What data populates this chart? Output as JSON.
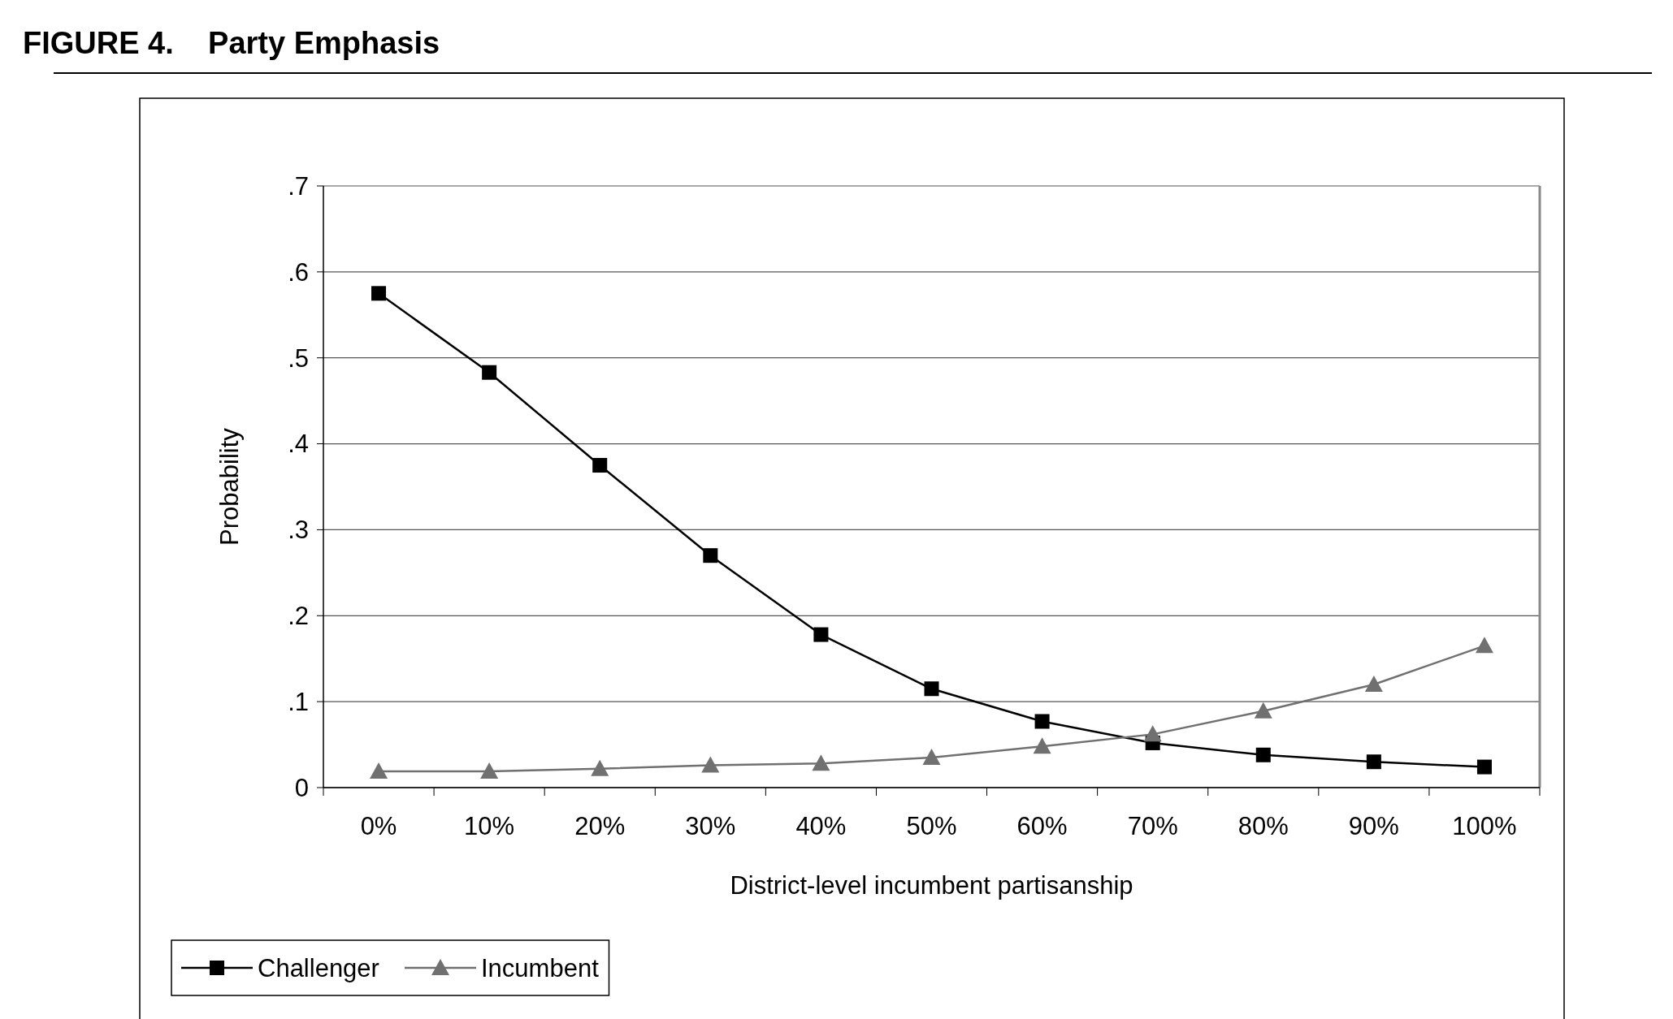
{
  "chart_data": {
    "type": "line",
    "title": "FIGURE 4.    Party Emphasis",
    "xlabel": "District-level incumbent partisanship",
    "ylabel": "Probability",
    "categories": [
      "0%",
      "10%",
      "20%",
      "30%",
      "40%",
      "50%",
      "60%",
      "70%",
      "80%",
      "90%",
      "100%"
    ],
    "ylim": [
      0,
      0.7
    ],
    "yticks": [
      0,
      {
        "value": 0.1,
        "label": ".1"
      },
      {
        "value": 0.2,
        "label": ".2"
      },
      {
        "value": 0.3,
        "label": ".3"
      },
      {
        "value": 0.4,
        "label": ".4"
      },
      {
        "value": 0.5,
        "label": ".5"
      },
      {
        "value": 0.6,
        "label": ".6"
      },
      {
        "value": 0.7,
        "label": ".7"
      }
    ],
    "grid": "y",
    "legend": "bottom left",
    "series": [
      {
        "name": "Challenger",
        "color": "#000000",
        "marker": "square",
        "values": [
          0.575,
          0.483,
          0.375,
          0.27,
          0.178,
          0.115,
          0.077,
          0.052,
          0.038,
          0.03,
          0.024
        ]
      },
      {
        "name": "Incumbent",
        "color": "#707070",
        "marker": "triangle",
        "values": [
          0.019,
          0.019,
          0.022,
          0.026,
          0.028,
          0.035,
          0.048,
          0.062,
          0.089,
          0.12,
          0.165
        ]
      }
    ]
  }
}
